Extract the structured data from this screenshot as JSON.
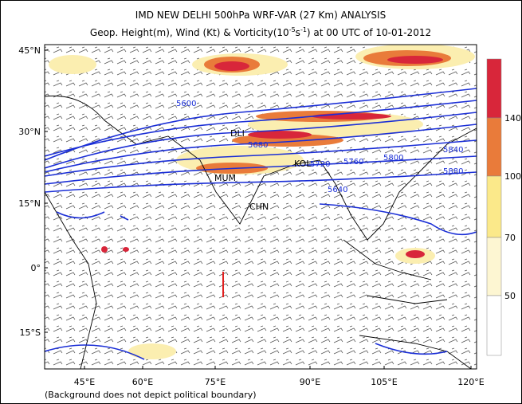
{
  "header": {
    "title": "IMD NEW DELHI 500hPa WRF-VAR (27 Km) ANALYSIS",
    "subtitle": {
      "before": "Geop. Height(m), Wind (Kt) & Vorticity(10",
      "exp1": "-5",
      "unit": "s",
      "exp2": "-1",
      "after": ") at 00 UTC of 10-01-2012"
    }
  },
  "map": {
    "lat_labels": [
      "45°N",
      "30°N",
      "15°N",
      "0°",
      "15°S"
    ],
    "lon_labels": [
      "45°E",
      "60°E",
      "75°E",
      "90°E",
      "105°E",
      "120°E"
    ],
    "contour_labels": [
      "5600",
      "5640",
      "5680",
      "5720",
      "5760",
      "5800",
      "5840",
      "5880"
    ],
    "stations": [
      "DLI",
      "KOL",
      "MUM",
      "CHN"
    ]
  },
  "colorbar": {
    "labels": [
      "140",
      "100",
      "70",
      "50"
    ]
  },
  "footnote": "(Background does not depict political boundary)"
}
